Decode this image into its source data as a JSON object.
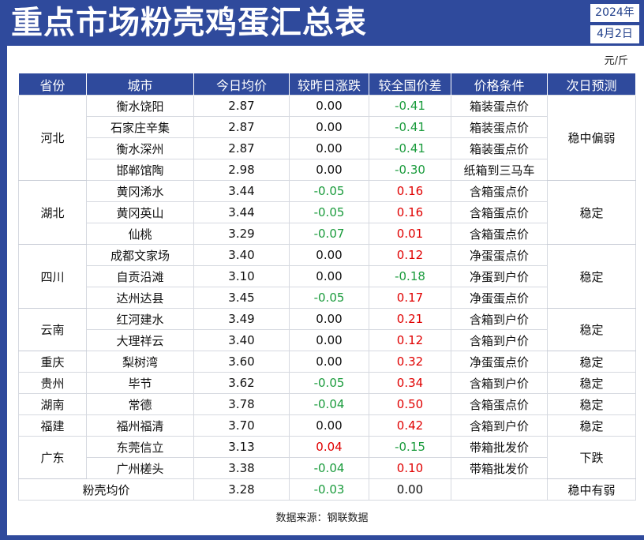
{
  "title": "重点市场粉壳鸡蛋汇总表",
  "date": {
    "year": "2024年",
    "day": "4月2日"
  },
  "unit": "元/斤",
  "headers": [
    "省份",
    "城市",
    "今日均价",
    "较昨日涨跌",
    "较全国价差",
    "价格条件",
    "次日预测"
  ],
  "rows": [
    {
      "city": "衡水饶阳",
      "price": "2.87",
      "change": "0.00",
      "diff": "-0.41",
      "condition": "箱装蛋点价"
    },
    {
      "city": "石家庄辛集",
      "price": "2.87",
      "change": "0.00",
      "diff": "-0.41",
      "condition": "箱装蛋点价"
    },
    {
      "city": "衡水深州",
      "price": "2.87",
      "change": "0.00",
      "diff": "-0.41",
      "condition": "箱装蛋点价"
    },
    {
      "city": "邯郸馆陶",
      "price": "2.98",
      "change": "0.00",
      "diff": "-0.30",
      "condition": "纸箱到三马车"
    },
    {
      "city": "黄冈浠水",
      "price": "3.44",
      "change": "-0.05",
      "diff": "0.16",
      "condition": "含箱蛋点价"
    },
    {
      "city": "黄冈英山",
      "price": "3.44",
      "change": "-0.05",
      "diff": "0.16",
      "condition": "含箱蛋点价"
    },
    {
      "city": "仙桃",
      "price": "3.29",
      "change": "-0.07",
      "diff": "0.01",
      "condition": "含箱蛋点价"
    },
    {
      "city": "成都文家场",
      "price": "3.40",
      "change": "0.00",
      "diff": "0.12",
      "condition": "净蛋蛋点价"
    },
    {
      "city": "自贡沿滩",
      "price": "3.10",
      "change": "0.00",
      "diff": "-0.18",
      "condition": "净蛋到户价"
    },
    {
      "city": "达州达县",
      "price": "3.45",
      "change": "-0.05",
      "diff": "0.17",
      "condition": "净蛋蛋点价"
    },
    {
      "city": "红河建水",
      "price": "3.49",
      "change": "0.00",
      "diff": "0.21",
      "condition": "含箱到户价"
    },
    {
      "city": "大理祥云",
      "price": "3.40",
      "change": "0.00",
      "diff": "0.12",
      "condition": "含箱到户价"
    },
    {
      "city": "梨树湾",
      "price": "3.60",
      "change": "0.00",
      "diff": "0.32",
      "condition": "净蛋蛋点价"
    },
    {
      "city": "毕节",
      "price": "3.62",
      "change": "-0.05",
      "diff": "0.34",
      "condition": "含箱到户价"
    },
    {
      "city": "常德",
      "price": "3.78",
      "change": "-0.04",
      "diff": "0.50",
      "condition": "含箱蛋点价"
    },
    {
      "city": "福州福清",
      "price": "3.70",
      "change": "0.00",
      "diff": "0.42",
      "condition": "含箱到户价"
    },
    {
      "city": "东莞信立",
      "price": "3.13",
      "change": "0.04",
      "diff": "-0.15",
      "condition": "带箱批发价"
    },
    {
      "city": "广州槎头",
      "price": "3.38",
      "change": "-0.04",
      "diff": "0.10",
      "condition": "带箱批发价"
    }
  ],
  "provinces": [
    {
      "name": "河北",
      "forecast": "稳中偏弱"
    },
    {
      "name": "湖北",
      "forecast": "稳定"
    },
    {
      "name": "四川",
      "forecast": "稳定"
    },
    {
      "name": "云南",
      "forecast": "稳定"
    },
    {
      "name": "重庆",
      "forecast": "稳定"
    },
    {
      "name": "贵州",
      "forecast": "稳定"
    },
    {
      "name": "湖南",
      "forecast": "稳定"
    },
    {
      "name": "福建",
      "forecast": "稳定"
    },
    {
      "name": "广东",
      "forecast": "下跌"
    }
  ],
  "summary": {
    "label": "粉壳均价",
    "price": "3.28",
    "change": "-0.03",
    "diff": "0.00",
    "condition": "",
    "forecast": "稳中有弱"
  },
  "source": "数据来源：钢联数据",
  "colors": {
    "brand": "#2f4a9c",
    "up": "#e00000",
    "down": "#1a9b3c"
  }
}
